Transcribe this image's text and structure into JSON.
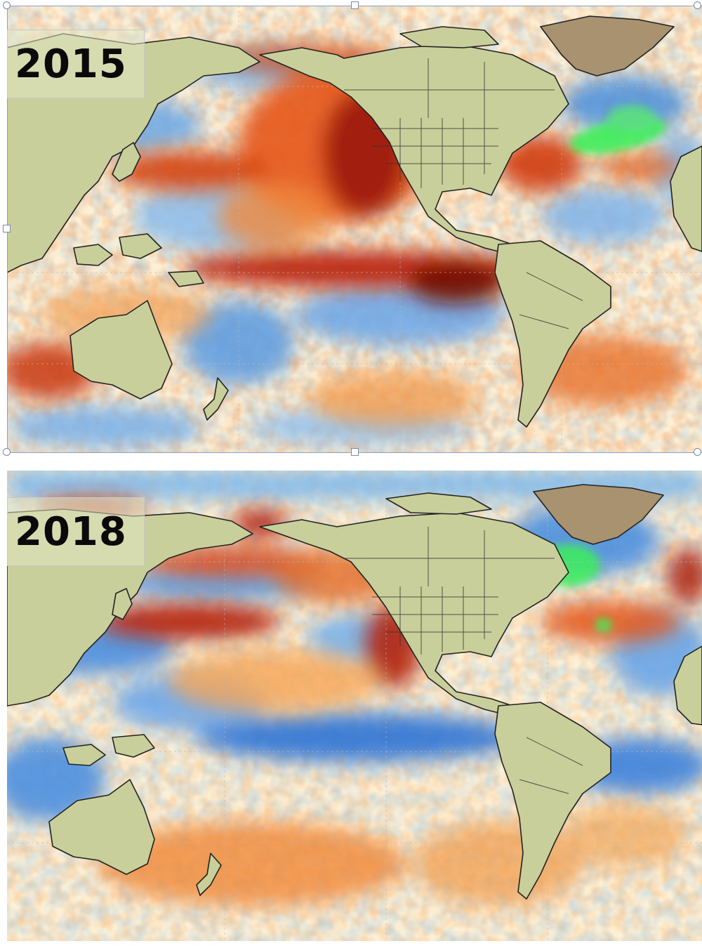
{
  "panels": [
    {
      "year": "2015"
    },
    {
      "year": "2018"
    }
  ],
  "colors": {
    "warm_dark": "#7a0c05",
    "warm": "#d9480f",
    "warm_light": "#f7b26b",
    "neutral": "#fdf3df",
    "cool": "#5aa0e0",
    "cool_dark": "#1f5fc4",
    "land": "#c9cf9a",
    "ice": "#9c8a6e",
    "anomaly_green": "#3cef5a"
  }
}
